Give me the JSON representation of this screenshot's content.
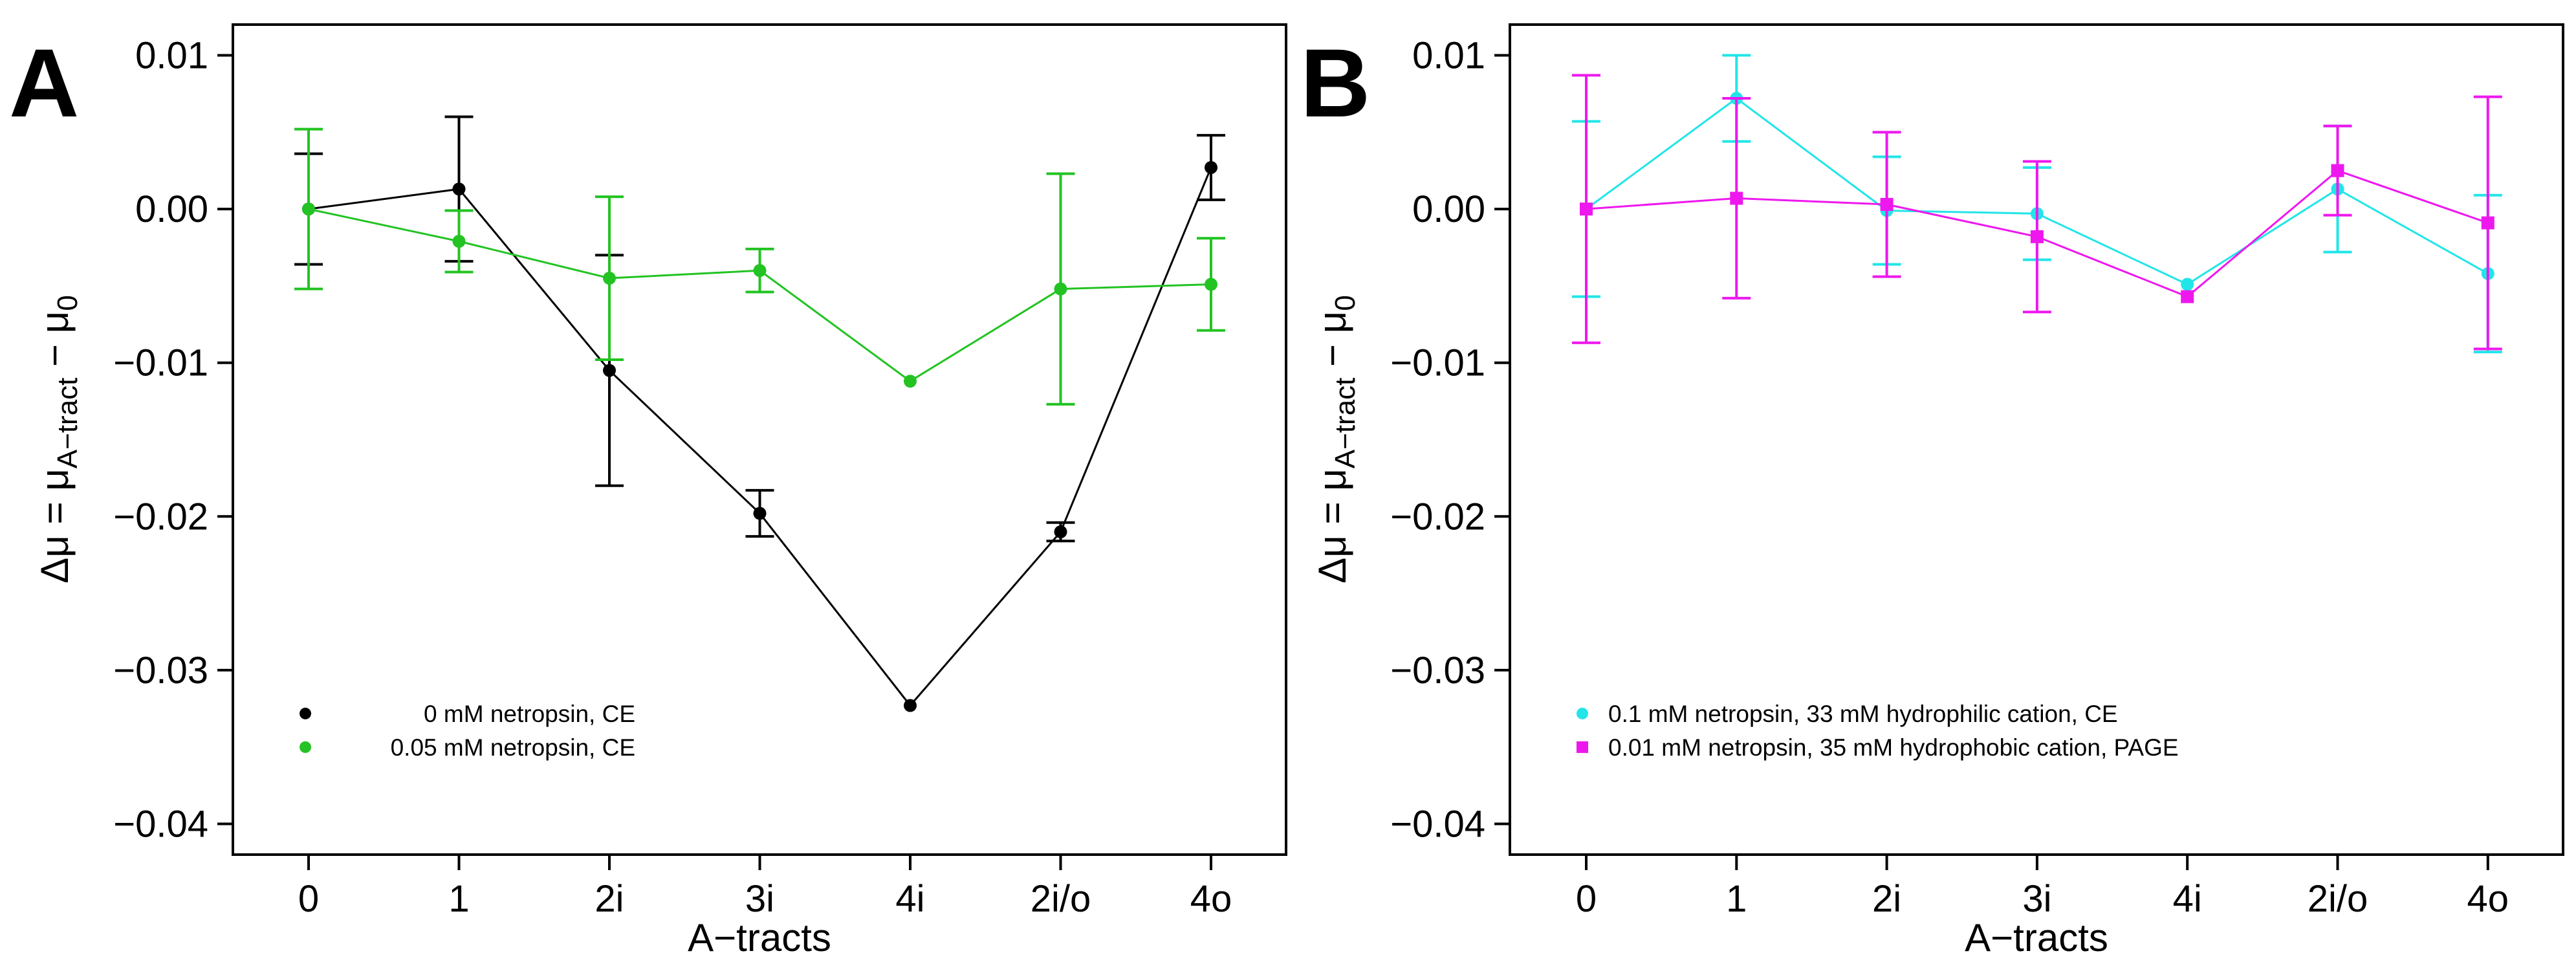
{
  "chart_data": [
    {
      "panel": "A",
      "type": "line",
      "categories": [
        "0",
        "1",
        "2i",
        "3i",
        "4i",
        "2i/o",
        "4o"
      ],
      "xlabel": "A−tracts",
      "ylabel": "Δμ = μA−tract − μ0",
      "ylim": [
        -0.042,
        0.012
      ],
      "yticks": [
        {
          "value": 0.01,
          "label": "0.01"
        },
        {
          "value": 0.0,
          "label": "0.00"
        },
        {
          "value": -0.01,
          "label": "−0.01"
        },
        {
          "value": -0.02,
          "label": "−0.02"
        },
        {
          "value": -0.03,
          "label": "−0.03"
        },
        {
          "value": -0.04,
          "label": "−0.04"
        }
      ],
      "legend_position": "bottom-left",
      "series": [
        {
          "name": "0 mM netropsin, CE",
          "color": "#000000",
          "marker": "circle",
          "values": [
            0.0,
            0.0013,
            -0.0105,
            -0.0198,
            -0.0323,
            -0.021,
            0.0027
          ],
          "errors": [
            0.0036,
            0.0047,
            0.0075,
            0.0015,
            0.0,
            0.0006,
            0.0021
          ]
        },
        {
          "name": "0.05 mM netropsin, CE",
          "color": "#22c322",
          "marker": "circle",
          "values": [
            0.0,
            -0.0021,
            -0.0045,
            -0.004,
            -0.0112,
            -0.0052,
            -0.0049
          ],
          "errors": [
            0.0052,
            0.002,
            0.0053,
            0.0014,
            0.0,
            0.0075,
            0.003
          ]
        }
      ]
    },
    {
      "panel": "B",
      "type": "line",
      "categories": [
        "0",
        "1",
        "2i",
        "3i",
        "4i",
        "2i/o",
        "4o"
      ],
      "xlabel": "A−tracts",
      "ylabel": "Δμ = μA−tract − μ0",
      "ylim": [
        -0.042,
        0.012
      ],
      "yticks": [
        {
          "value": 0.01,
          "label": "0.01"
        },
        {
          "value": 0.0,
          "label": "0.00"
        },
        {
          "value": -0.01,
          "label": "−0.01"
        },
        {
          "value": -0.02,
          "label": "−0.02"
        },
        {
          "value": -0.03,
          "label": "−0.03"
        },
        {
          "value": -0.04,
          "label": "−0.04"
        }
      ],
      "legend_position": "bottom-left",
      "series": [
        {
          "name": "0.1 mM netropsin, 33 mM hydrophilic cation, CE",
          "color": "#22e5e8",
          "marker": "circle",
          "values": [
            0.0,
            0.0072,
            -0.0001,
            -0.0003,
            -0.0049,
            0.0013,
            -0.0042
          ],
          "errors": [
            0.0057,
            0.0028,
            0.0035,
            0.003,
            0.0,
            0.0041,
            0.0051
          ]
        },
        {
          "name": "0.01 mM netropsin, 35 mM hydrophobic cation, PAGE",
          "color": "#ee18ee",
          "marker": "square",
          "values": [
            0.0,
            0.0007,
            0.0003,
            -0.0018,
            -0.0057,
            0.0025,
            -0.0009
          ],
          "errors": [
            0.0087,
            0.0065,
            0.0047,
            0.0049,
            0.0,
            0.0029,
            0.0082
          ]
        }
      ]
    }
  ]
}
